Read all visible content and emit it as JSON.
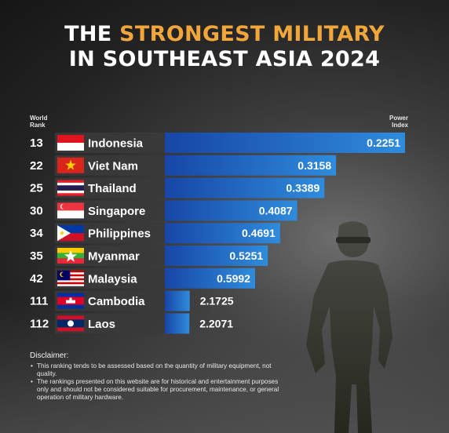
{
  "title": {
    "line1_pre": "THE ",
    "line1_highlight": "STRONGEST MILITARY",
    "line2": "IN SOUTHEAST ASIA 2024"
  },
  "headers": {
    "rank_line1": "World",
    "rank_line2": "Rank",
    "power_line1": "Power",
    "power_line2": "Index"
  },
  "colors": {
    "bar_dark": "#1746a8",
    "bar_light": "#2f8cdc",
    "highlight": "#f0a63a",
    "row_bg": "#3a3a3a"
  },
  "chart_data": {
    "type": "bar",
    "orientation": "horizontal",
    "xlabel": "Power Index",
    "note": "lower power index = stronger; bars longer for lower index",
    "rows": [
      {
        "rank": "13",
        "country": "Indonesia",
        "value": 0.2251,
        "value_label": "0.2251",
        "flag": "indonesia-flag"
      },
      {
        "rank": "22",
        "country": "Viet Nam",
        "value": 0.3158,
        "value_label": "0.3158",
        "flag": "vietnam-flag"
      },
      {
        "rank": "25",
        "country": "Thailand",
        "value": 0.3389,
        "value_label": "0.3389",
        "flag": "thailand-flag"
      },
      {
        "rank": "30",
        "country": "Singapore",
        "value": 0.4087,
        "value_label": "0.4087",
        "flag": "singapore-flag"
      },
      {
        "rank": "34",
        "country": "Philippines",
        "value": 0.4691,
        "value_label": "0.4691",
        "flag": "philippines-flag"
      },
      {
        "rank": "35",
        "country": "Myanmar",
        "value": 0.5251,
        "value_label": "0.5251",
        "flag": "myanmar-flag"
      },
      {
        "rank": "42",
        "country": "Malaysia",
        "value": 0.5992,
        "value_label": "0.5992",
        "flag": "malaysia-flag"
      },
      {
        "rank": "111",
        "country": "Cambodia",
        "value": 2.1725,
        "value_label": "2.1725",
        "flag": "cambodia-flag"
      },
      {
        "rank": "112",
        "country": "Laos",
        "value": 2.2071,
        "value_label": "2.2071",
        "flag": "laos-flag"
      }
    ]
  },
  "disclaimer": {
    "title": "Disclaimer:",
    "items": [
      "This ranking tends to be assessed based on the quantity of military equipment, not quality.",
      "The rankings presented on this website are for historical and entertainment purposes only and should not be considered suitable for procurement, maintenance, or general operation of military hardware."
    ]
  }
}
